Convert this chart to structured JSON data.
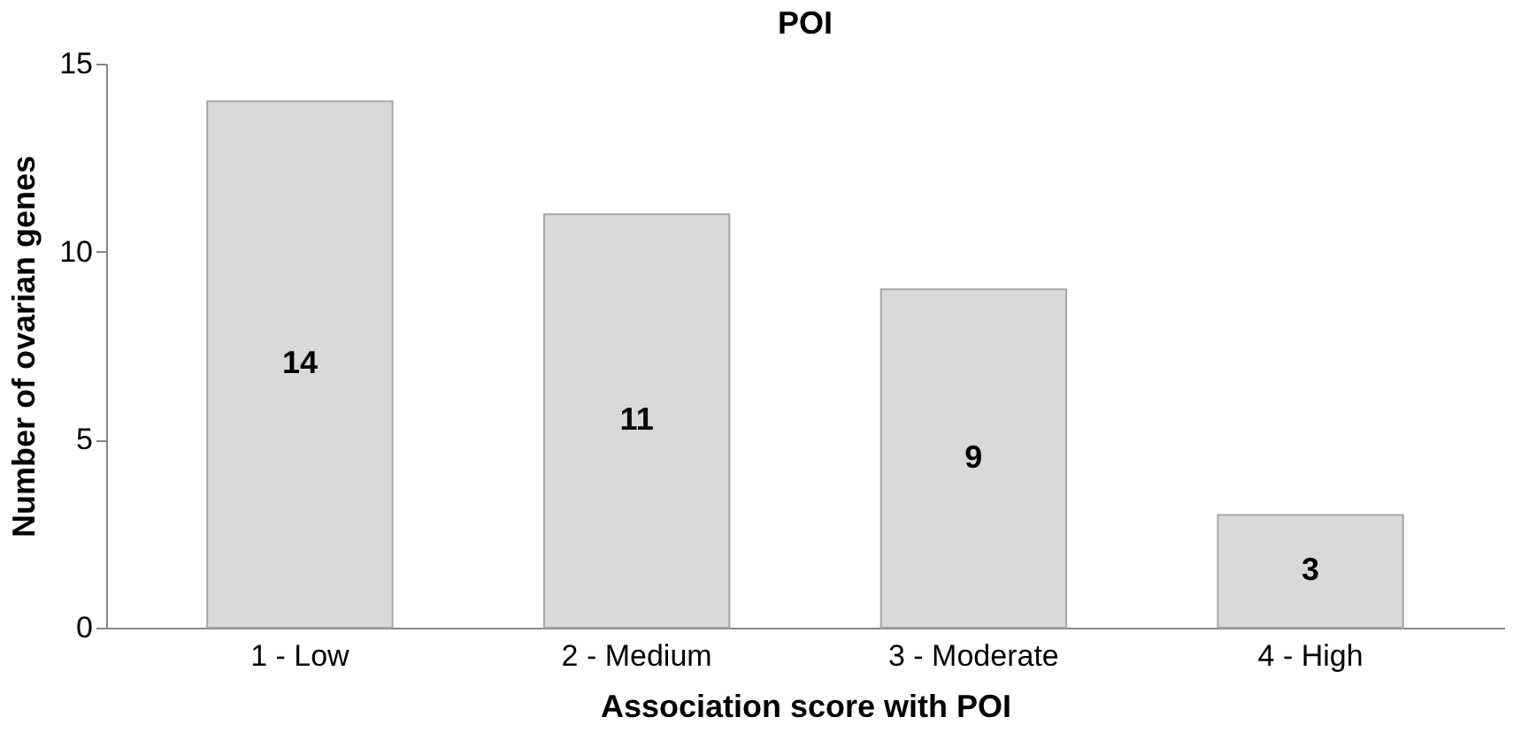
{
  "chart_data": {
    "type": "bar",
    "title": "POI",
    "xlabel": "Association score with POI",
    "ylabel": "Number of ovarian genes",
    "categories": [
      "1 - Low",
      "2 - Medium",
      "3 - Moderate",
      "4 - High"
    ],
    "values": [
      14,
      11,
      9,
      3
    ],
    "color": "#d9d9d9",
    "ylim": [
      0,
      15
    ],
    "yticks": [
      0,
      5,
      10,
      15
    ],
    "grid": false,
    "data_labels": true
  }
}
